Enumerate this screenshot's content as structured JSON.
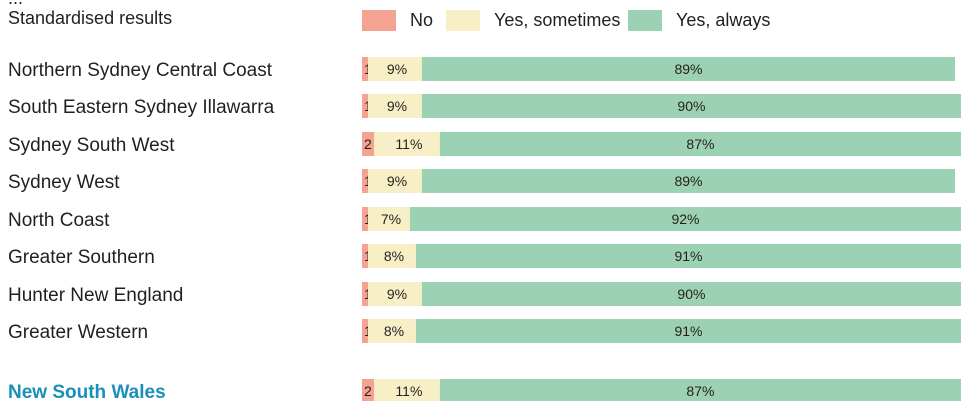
{
  "chart_data": {
    "type": "bar",
    "stacked": true,
    "orientation": "horizontal",
    "partial_label": "...",
    "subtitle": "Standardised results",
    "categories": [
      "Northern Sydney Central Coast",
      "South Eastern Sydney Illawarra",
      "Sydney South West",
      "Sydney West",
      "North Coast",
      "Greater Southern",
      "Hunter New England",
      "Greater Western",
      "New South Wales"
    ],
    "highlight_category": "New South Wales",
    "series": [
      {
        "name": "No",
        "color": "#f4a393",
        "values": [
          1,
          1,
          2,
          1,
          1,
          1,
          1,
          1,
          2
        ],
        "labels": [
          "1",
          "1",
          "2",
          "1",
          "1",
          "1",
          "1",
          "1",
          "2"
        ]
      },
      {
        "name": "Yes, sometimes",
        "color": "#f7f0c6",
        "values": [
          9,
          9,
          11,
          9,
          7,
          8,
          9,
          8,
          11
        ],
        "labels": [
          "9%",
          "9%",
          "11%",
          "9%",
          "7%",
          "8%",
          "9%",
          "8%",
          "11%"
        ]
      },
      {
        "name": "Yes, always",
        "color": "#9dd1b4",
        "values": [
          89,
          90,
          87,
          89,
          92,
          91,
          90,
          91,
          87
        ],
        "labels": [
          "89%",
          "90%",
          "87%",
          "89%",
          "92%",
          "91%",
          "90%",
          "91%",
          "87%"
        ]
      }
    ],
    "xlim": [
      0,
      100
    ],
    "legend_position": "top",
    "grid": false
  },
  "colors": {
    "highlight_text": "#1a8fb8",
    "text": "#231f20"
  }
}
